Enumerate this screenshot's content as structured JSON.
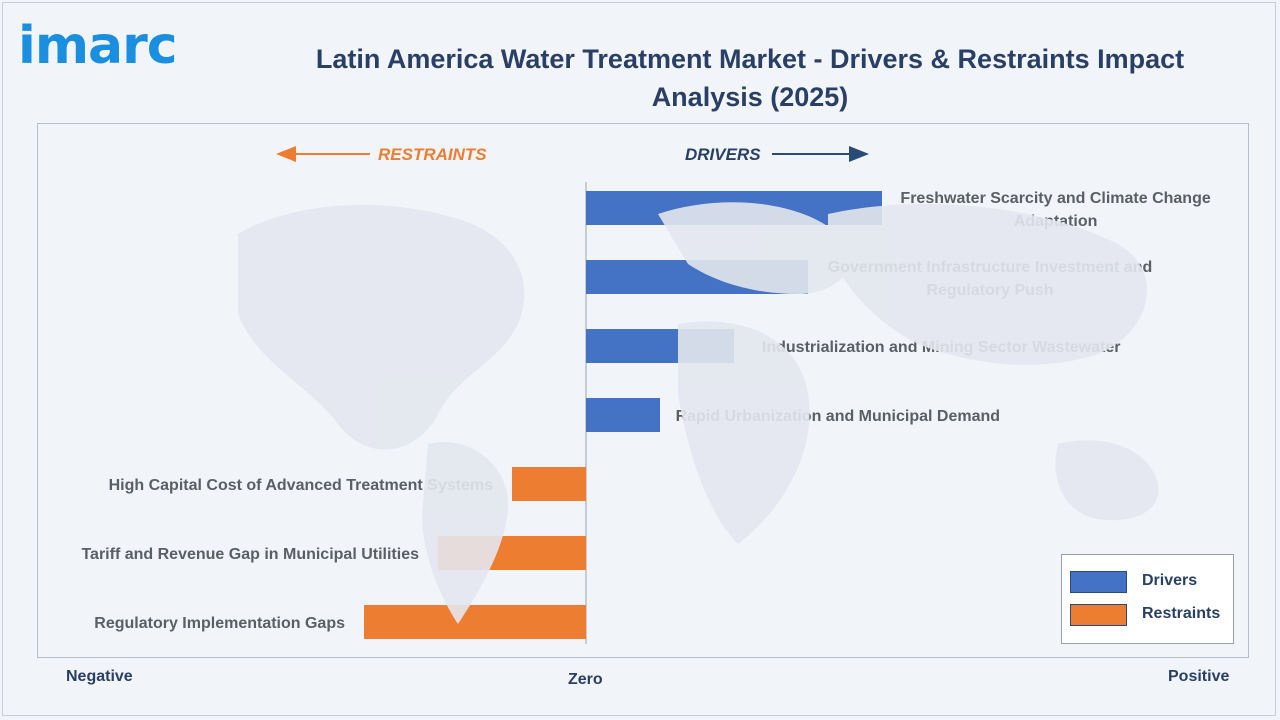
{
  "brand": {
    "logo_text": "imarc"
  },
  "title": "Latin America Water Treatment Market - Drivers & Restraints Impact Analysis (2025)",
  "colors": {
    "drivers": "#4472c4",
    "restraints": "#ed7d31",
    "text": "#2a3f66",
    "label": "#5a5f66"
  },
  "axis": {
    "negative": "Negative",
    "zero": "Zero",
    "positive": "Positive"
  },
  "legend": {
    "drivers_label": "Drivers",
    "restraints_label": "Restraints"
  },
  "chart_data": {
    "type": "bar",
    "orientation": "horizontal",
    "direction_labels": {
      "restraints": "RESTRAINTS",
      "drivers": "DRIVERS"
    },
    "categories": [
      "Freshwater Scarcity and Climate Change Adaptation",
      "Government Infrastructure Investment and Regulatory Push",
      "Industrialization and Mining Sector Wastewater",
      "Rapid Urbanization and Municipal Demand",
      "High Capital Cost of Advanced Treatment Systems",
      "Tariff and Revenue Gap in Municipal Utilities",
      "Regulatory Implementation Gaps"
    ],
    "series": [
      {
        "name": "Drivers",
        "values": [
          4,
          3,
          2,
          1,
          null,
          null,
          null
        ]
      },
      {
        "name": "Restraints",
        "values": [
          null,
          null,
          null,
          null,
          -1,
          -2,
          -3
        ]
      }
    ],
    "xlim": [
      -7.4,
      9.0
    ]
  }
}
